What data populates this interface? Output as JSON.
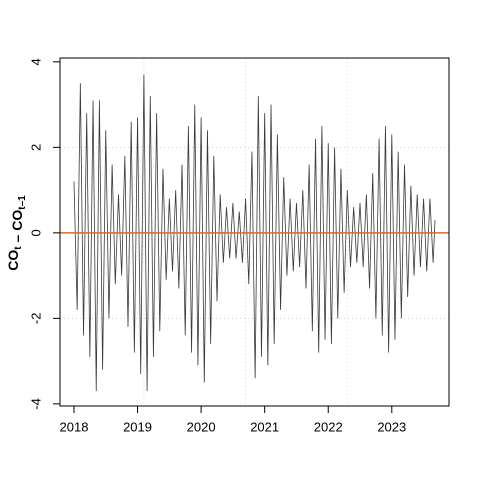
{
  "chart_data": {
    "type": "line",
    "ylabel": [
      {
        "text": "CO",
        "sub": "t"
      },
      {
        "text": " – CO",
        "sub": "t–1"
      }
    ],
    "x": [
      2018.0,
      2018.05,
      2018.1,
      2018.15,
      2018.2,
      2018.25,
      2018.3,
      2018.35,
      2018.4,
      2018.45,
      2018.5,
      2018.55,
      2018.6,
      2018.65,
      2018.7,
      2018.75,
      2018.8,
      2018.85,
      2018.9,
      2018.95,
      2019.0,
      2019.05,
      2019.1,
      2019.15,
      2019.2,
      2019.25,
      2019.3,
      2019.35,
      2019.4,
      2019.45,
      2019.5,
      2019.55,
      2019.6,
      2019.65,
      2019.7,
      2019.75,
      2019.8,
      2019.85,
      2019.9,
      2019.95,
      2020.0,
      2020.05,
      2020.1,
      2020.15,
      2020.2,
      2020.25,
      2020.3,
      2020.35,
      2020.4,
      2020.45,
      2020.5,
      2020.55,
      2020.6,
      2020.65,
      2020.7,
      2020.75,
      2020.8,
      2020.85,
      2020.9,
      2020.95,
      2021.0,
      2021.05,
      2021.1,
      2021.15,
      2021.2,
      2021.25,
      2021.3,
      2021.35,
      2021.4,
      2021.45,
      2021.5,
      2021.55,
      2021.6,
      2021.65,
      2021.7,
      2021.75,
      2021.8,
      2021.85,
      2021.9,
      2021.95,
      2022.0,
      2022.05,
      2022.1,
      2022.15,
      2022.2,
      2022.25,
      2022.3,
      2022.35,
      2022.4,
      2022.45,
      2022.5,
      2022.55,
      2022.6,
      2022.65,
      2022.7,
      2022.75,
      2022.8,
      2022.85,
      2022.9,
      2022.95,
      2023.0,
      2023.05,
      2023.1,
      2023.15,
      2023.2,
      2023.25,
      2023.3,
      2023.35,
      2023.4,
      2023.45,
      2023.5,
      2023.55,
      2023.6,
      2023.65,
      2023.68
    ],
    "values": [
      1.2,
      -1.8,
      3.5,
      -2.4,
      2.8,
      -2.9,
      3.1,
      -3.7,
      3.1,
      -3.2,
      2.4,
      -2.0,
      1.6,
      -1.2,
      0.9,
      -1.0,
      1.8,
      -2.2,
      2.6,
      -2.8,
      2.7,
      -3.3,
      3.7,
      -3.7,
      3.2,
      -2.9,
      2.8,
      -2.3,
      1.5,
      -1.1,
      0.8,
      -0.9,
      1.0,
      -1.3,
      1.6,
      -2.4,
      2.5,
      -2.8,
      3.0,
      -3.1,
      2.7,
      -3.5,
      2.4,
      -2.6,
      1.8,
      -1.6,
      0.9,
      -0.7,
      0.6,
      -0.6,
      0.7,
      -0.6,
      0.5,
      -0.7,
      0.8,
      -1.2,
      1.9,
      -3.4,
      3.2,
      -2.9,
      2.8,
      -3.1,
      3.0,
      -2.6,
      2.3,
      -1.8,
      1.3,
      -1.0,
      0.8,
      -0.9,
      0.7,
      -0.8,
      1.0,
      -1.3,
      1.6,
      -2.3,
      2.2,
      -2.8,
      2.5,
      -2.5,
      2.1,
      -2.6,
      2.0,
      -2.0,
      1.5,
      -1.4,
      1.0,
      -0.8,
      0.6,
      -0.7,
      0.7,
      -0.8,
      0.9,
      -1.3,
      1.4,
      -2.0,
      2.2,
      -2.4,
      2.5,
      -2.8,
      2.3,
      -2.5,
      1.9,
      -2.0,
      1.6,
      -1.5,
      1.1,
      -1.0,
      0.9,
      -0.8,
      0.8,
      -0.9,
      0.8,
      -0.7,
      0.3
    ],
    "color": "#3a3a3a",
    "xlim": [
      2017.78,
      2023.9
    ],
    "xticks": [
      2018,
      2019,
      2020,
      2021,
      2022,
      2023
    ],
    "ylim": [
      -4.05,
      4.09
    ],
    "yticks": [
      -4,
      -2,
      0,
      2,
      4
    ],
    "grid": true,
    "xgrid": [
      2019.1,
      2020.7,
      2022.3
    ],
    "ygrid": [
      -2,
      0,
      2
    ],
    "hline": 0,
    "hline_color": "#e0662a"
  }
}
